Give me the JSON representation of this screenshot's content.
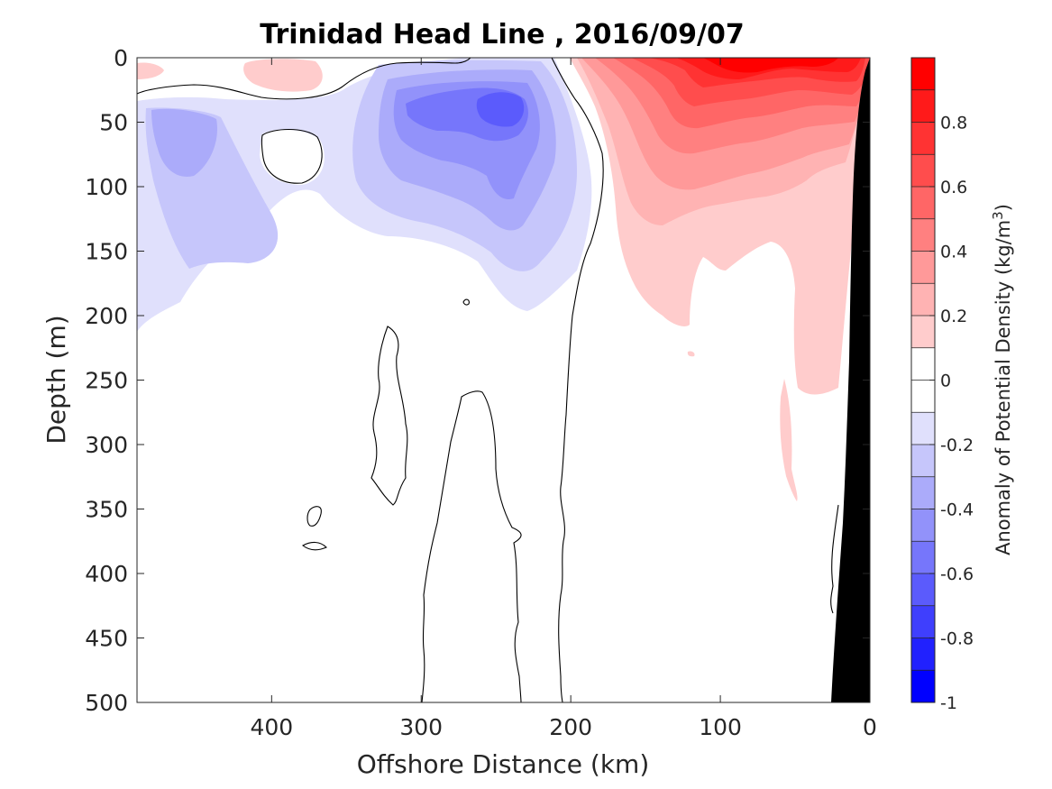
{
  "chart_data": {
    "type": "heatmap",
    "title": "Trinidad Head Line , 2016/09/07",
    "xlabel": "Offshore Distance (km)",
    "ylabel": "Depth (m)",
    "xlim": [
      490,
      0
    ],
    "xticks": [
      400,
      300,
      200,
      100,
      0
    ],
    "xtick_labels": [
      "400",
      "300",
      "200",
      "100",
      "0"
    ],
    "ylim": [
      0,
      500
    ],
    "yticks": [
      0,
      50,
      100,
      150,
      200,
      250,
      300,
      350,
      400,
      450,
      500
    ],
    "ytick_labels": [
      "0",
      "50",
      "100",
      "150",
      "200",
      "250",
      "300",
      "350",
      "400",
      "450",
      "500"
    ],
    "colorbar": {
      "label": "Anomaly of Potential Density (kg/m",
      "label_sup": "3",
      "label_end": ")",
      "range": [
        -1,
        1
      ],
      "tick_values": [
        0.8,
        0.6,
        0.4,
        0.2,
        0,
        -0.2,
        -0.4,
        -0.6,
        -0.8,
        -1
      ],
      "tick_labels": [
        "0.8",
        "0.6",
        "0.4",
        "0.2",
        "0",
        "-0.2",
        "-0.4",
        "-0.6",
        "-0.8",
        "-1"
      ],
      "levels": [
        {
          "from": 0.9,
          "to": 1.0,
          "color": "#ff0000"
        },
        {
          "from": 0.8,
          "to": 0.9,
          "color": "#ff1a1a"
        },
        {
          "from": 0.7,
          "to": 0.8,
          "color": "#ff3333"
        },
        {
          "from": 0.6,
          "to": 0.7,
          "color": "#ff4d4d"
        },
        {
          "from": 0.5,
          "to": 0.6,
          "color": "#ff6666"
        },
        {
          "from": 0.4,
          "to": 0.5,
          "color": "#ff8080"
        },
        {
          "from": 0.3,
          "to": 0.4,
          "color": "#ff9999"
        },
        {
          "from": 0.2,
          "to": 0.3,
          "color": "#ffb3b3"
        },
        {
          "from": 0.1,
          "to": 0.2,
          "color": "#ffcccc"
        },
        {
          "from": 0.0,
          "to": 0.1,
          "color": "#ffffff"
        },
        {
          "from": -0.1,
          "to": 0.0,
          "color": "#ffffff"
        },
        {
          "from": -0.2,
          "to": -0.1,
          "color": "#e0e0fc"
        },
        {
          "from": -0.3,
          "to": -0.2,
          "color": "#c6c6fb"
        },
        {
          "from": -0.4,
          "to": -0.3,
          "color": "#ababfa"
        },
        {
          "from": -0.5,
          "to": -0.4,
          "color": "#9292fa"
        },
        {
          "from": -0.6,
          "to": -0.5,
          "color": "#7676fb"
        },
        {
          "from": -0.7,
          "to": -0.6,
          "color": "#5b5bfc"
        },
        {
          "from": -0.8,
          "to": -0.7,
          "color": "#3f3ffd"
        },
        {
          "from": -0.9,
          "to": -0.8,
          "color": "#2121fe"
        },
        {
          "from": -1.0,
          "to": -0.9,
          "color": "#0000ff"
        }
      ]
    },
    "regions": [
      {
        "name": "surface positive anomaly near coast",
        "max_anomaly": 0.9,
        "x_range_km": [
          200,
          0
        ],
        "depth_range_m": [
          0,
          360
        ]
      },
      {
        "name": "offshore negative anomaly",
        "min_anomaly": -0.6,
        "x_range_km": [
          490,
          205
        ],
        "depth_range_m": [
          0,
          210
        ]
      },
      {
        "name": "small positive patch",
        "max_anomaly": 0.2,
        "x_range_km": [
          420,
          350
        ],
        "depth_range_m": [
          0,
          25
        ]
      },
      {
        "name": "seafloor (masked)",
        "color": "#000000",
        "x_range_km": [
          30,
          0
        ],
        "depth_range_m": [
          0,
          500
        ]
      }
    ]
  }
}
